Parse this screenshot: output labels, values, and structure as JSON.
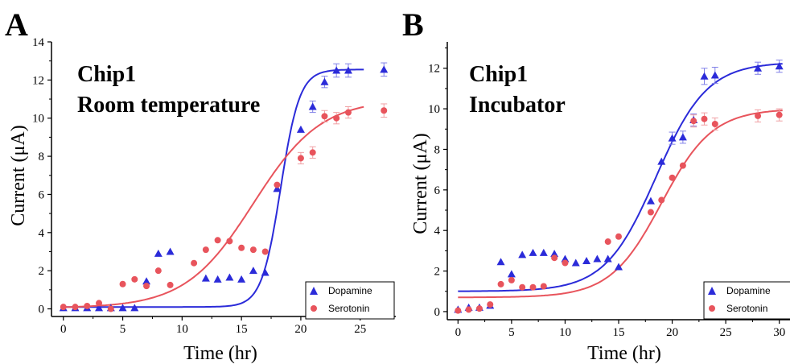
{
  "panels": [
    {
      "letter": "A",
      "annotation": [
        "Chip1",
        "Room temperature"
      ],
      "chart_data": {
        "type": "scatter",
        "xlabel": "Time (hr)",
        "ylabel": "Current (μA)",
        "xlim": [
          -1,
          28
        ],
        "ylim": [
          -0.4,
          14
        ],
        "xticks": [
          0,
          5,
          10,
          15,
          20,
          25
        ],
        "yticks": [
          0,
          2,
          4,
          6,
          8,
          10,
          12,
          14
        ],
        "legend_position": "bottom-right",
        "series": [
          {
            "name": "Dopamine",
            "color": "#2b2bd9",
            "marker": "triangle",
            "points": [
              [
                0,
                0.05
              ],
              [
                1,
                0.05
              ],
              [
                2,
                0.05
              ],
              [
                3,
                0.05
              ],
              [
                4,
                0.05
              ],
              [
                5,
                0.05
              ],
              [
                6,
                0.05
              ],
              [
                7,
                1.45
              ],
              [
                8,
                2.9
              ],
              [
                9,
                3.0
              ],
              [
                12,
                1.6
              ],
              [
                13,
                1.55
              ],
              [
                14,
                1.65
              ],
              [
                15,
                1.55
              ],
              [
                16,
                2.0
              ],
              [
                17,
                1.9
              ],
              [
                18,
                6.3
              ],
              [
                20,
                9.4
              ],
              [
                21,
                10.6
              ],
              [
                22,
                11.9
              ],
              [
                23,
                12.5
              ],
              [
                24,
                12.5
              ],
              [
                27,
                12.55
              ]
            ],
            "errors": [
              [
                21,
                0.3
              ],
              [
                22,
                0.3
              ],
              [
                23,
                0.35
              ],
              [
                24,
                0.35
              ],
              [
                27,
                0.35
              ]
            ],
            "fit": {
              "bottom": 0.1,
              "top": 12.55,
              "x0": 18.3,
              "k": 1.25
            }
          },
          {
            "name": "Serotonin",
            "color": "#e8545c",
            "marker": "circle",
            "points": [
              [
                0,
                0.1
              ],
              [
                1,
                0.1
              ],
              [
                2,
                0.15
              ],
              [
                3,
                0.3
              ],
              [
                4,
                0.0
              ],
              [
                5,
                1.3
              ],
              [
                6,
                1.55
              ],
              [
                7,
                1.2
              ],
              [
                8,
                2.0
              ],
              [
                9,
                1.25
              ],
              [
                11,
                2.4
              ],
              [
                12,
                3.1
              ],
              [
                13,
                3.6
              ],
              [
                14,
                3.55
              ],
              [
                15,
                3.2
              ],
              [
                16,
                3.1
              ],
              [
                17,
                3.0
              ],
              [
                18,
                6.5
              ],
              [
                20,
                7.9
              ],
              [
                21,
                8.2
              ],
              [
                22,
                10.1
              ],
              [
                23,
                10.0
              ],
              [
                24,
                10.3
              ],
              [
                27,
                10.4
              ]
            ],
            "errors": [
              [
                20,
                0.3
              ],
              [
                21,
                0.3
              ],
              [
                22,
                0.3
              ],
              [
                23,
                0.3
              ],
              [
                24,
                0.3
              ],
              [
                27,
                0.35
              ]
            ],
            "fit": {
              "bottom": 0.05,
              "top": 11.0,
              "x0": 16.0,
              "k": 0.35
            }
          }
        ]
      }
    },
    {
      "letter": "B",
      "annotation": [
        "Chip1",
        "Incubator"
      ],
      "chart_data": {
        "type": "scatter",
        "xlabel": "Time (hr)",
        "ylabel": "Current (μA)",
        "xlim": [
          -1,
          31
        ],
        "ylim": [
          -0.4,
          13.3
        ],
        "xticks": [
          0,
          5,
          10,
          15,
          20,
          25,
          30
        ],
        "yticks": [
          0,
          2,
          4,
          6,
          8,
          10,
          12
        ],
        "legend_position": "bottom-right",
        "series": [
          {
            "name": "Dopamine",
            "color": "#2b2bd9",
            "marker": "triangle",
            "points": [
              [
                0,
                0.1
              ],
              [
                1,
                0.2
              ],
              [
                2,
                0.2
              ],
              [
                3,
                0.3
              ],
              [
                4,
                2.45
              ],
              [
                5,
                1.85
              ],
              [
                6,
                2.8
              ],
              [
                7,
                2.9
              ],
              [
                8,
                2.9
              ],
              [
                9,
                2.85
              ],
              [
                10,
                2.6
              ],
              [
                11,
                2.4
              ],
              [
                12,
                2.5
              ],
              [
                13,
                2.6
              ],
              [
                14,
                2.6
              ],
              [
                15,
                2.2
              ],
              [
                18,
                5.45
              ],
              [
                19,
                7.4
              ],
              [
                20,
                8.55
              ],
              [
                21,
                8.6
              ],
              [
                22,
                9.45
              ],
              [
                23,
                11.6
              ],
              [
                24,
                11.65
              ],
              [
                28,
                12.0
              ],
              [
                30,
                12.1
              ]
            ],
            "errors": [
              [
                20,
                0.3
              ],
              [
                21,
                0.3
              ],
              [
                22,
                0.3
              ],
              [
                23,
                0.4
              ],
              [
                24,
                0.4
              ],
              [
                28,
                0.3
              ],
              [
                30,
                0.3
              ]
            ],
            "fit": {
              "bottom": 1.0,
              "top": 12.3,
              "x0": 18.5,
              "k": 0.42
            }
          },
          {
            "name": "Serotonin",
            "color": "#e8545c",
            "marker": "circle",
            "points": [
              [
                0,
                0.05
              ],
              [
                1,
                0.1
              ],
              [
                2,
                0.15
              ],
              [
                3,
                0.35
              ],
              [
                4,
                1.35
              ],
              [
                5,
                1.55
              ],
              [
                6,
                1.2
              ],
              [
                7,
                1.2
              ],
              [
                8,
                1.25
              ],
              [
                9,
                2.65
              ],
              [
                10,
                2.4
              ],
              [
                14,
                3.45
              ],
              [
                15,
                3.7
              ],
              [
                18,
                4.9
              ],
              [
                19,
                5.5
              ],
              [
                20,
                6.6
              ],
              [
                21,
                7.2
              ],
              [
                22,
                9.4
              ],
              [
                23,
                9.5
              ],
              [
                24,
                9.25
              ],
              [
                28,
                9.65
              ],
              [
                30,
                9.7
              ]
            ],
            "errors": [
              [
                22,
                0.3
              ],
              [
                23,
                0.3
              ],
              [
                24,
                0.3
              ],
              [
                28,
                0.3
              ],
              [
                30,
                0.3
              ]
            ],
            "fit": {
              "bottom": 0.7,
              "top": 10.0,
              "x0": 19.0,
              "k": 0.42
            }
          }
        ]
      }
    }
  ]
}
